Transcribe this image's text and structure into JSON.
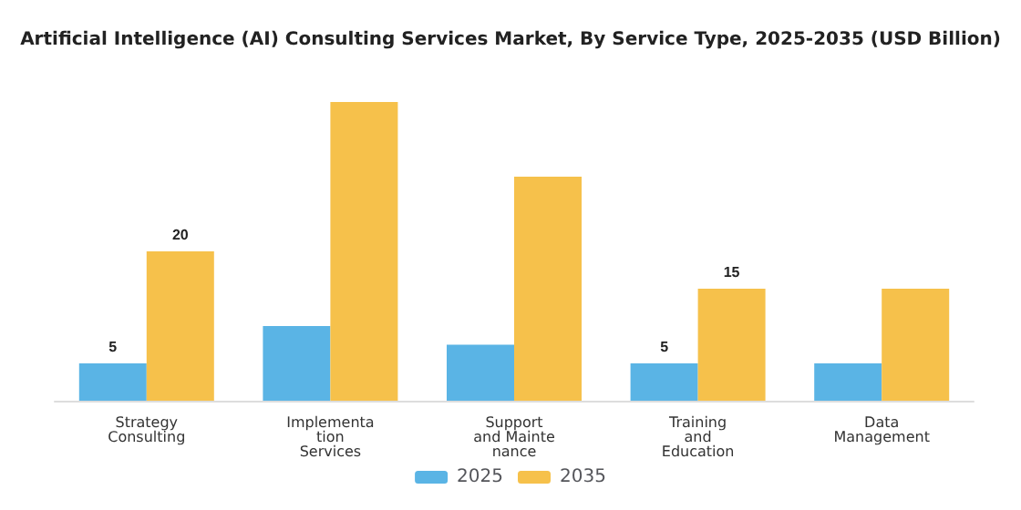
{
  "chart_data": {
    "type": "bar",
    "title": "Artificial Intelligence (AI) Consulting Services Market, By Service Type, 2025-2035 (USD Billion)",
    "categories": [
      "Strategy\nConsulting",
      "Implementa\ntion\nServices",
      "Support\nand Mainte\nnance",
      "Training\nand\nEducation",
      "Data\nManagement"
    ],
    "series": [
      {
        "name": "2025",
        "color": "#5ab4e5",
        "values": [
          5,
          10,
          7.5,
          5,
          5
        ],
        "value_labels": [
          "5",
          null,
          null,
          "5",
          null
        ]
      },
      {
        "name": "2035",
        "color": "#f6c14b",
        "values": [
          20,
          40,
          30,
          15,
          15
        ],
        "value_labels": [
          "20",
          null,
          null,
          "15",
          null
        ]
      }
    ],
    "legend": "bottom",
    "grid": false
  }
}
